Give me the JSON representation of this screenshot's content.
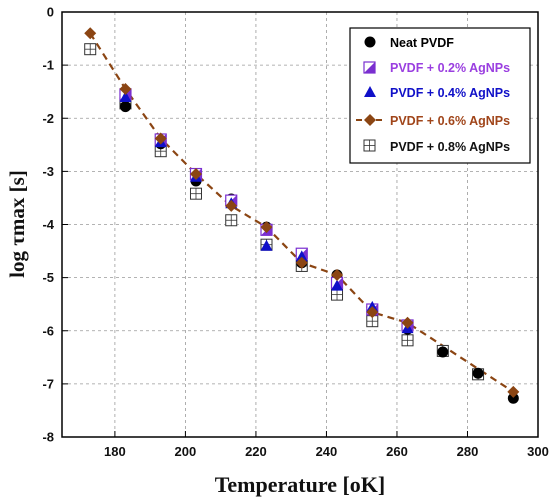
{
  "chart_data": {
    "type": "scatter",
    "xlabel": "Temperature [oK]",
    "ylabel": "log τmax [s]",
    "xlim": [
      165,
      300
    ],
    "ylim": [
      -8,
      0
    ],
    "x_ticks": [
      180,
      200,
      220,
      240,
      260,
      280,
      300
    ],
    "y_ticks": [
      0,
      -1,
      -2,
      -3,
      -4,
      -5,
      -6,
      -7,
      -8
    ],
    "grid": true,
    "legend_position": "top-right",
    "series": [
      {
        "name": "Neat PVDF",
        "marker": "circle",
        "color": "#000000",
        "x": [
          183,
          193,
          203,
          213,
          223,
          233,
          243,
          253,
          263,
          273,
          283,
          293
        ],
        "y": [
          -1.78,
          -2.48,
          -3.18,
          -3.52,
          -4.05,
          -4.72,
          -4.95,
          -5.6,
          -5.97,
          -6.4,
          -6.8,
          -7.27
        ]
      },
      {
        "name": "PVDF + 0.2% AgNPs",
        "marker": "half-square",
        "color": "#7a2fd0",
        "x": [
          183,
          193,
          203,
          213,
          223,
          233,
          243,
          253,
          263
        ],
        "y": [
          -1.55,
          -2.4,
          -3.05,
          -3.55,
          -4.1,
          -4.55,
          -5.1,
          -5.6,
          -5.9
        ]
      },
      {
        "name": "PVDF + 0.4% AgNPs",
        "marker": "triangle",
        "color": "#1010c8",
        "x": [
          183,
          193,
          203,
          213,
          223,
          233,
          243,
          253,
          263
        ],
        "y": [
          -1.6,
          -2.45,
          -3.1,
          -3.6,
          -4.4,
          -4.6,
          -5.15,
          -5.55,
          -5.95
        ]
      },
      {
        "name": "PVDF + 0.6% AgNPs",
        "marker": "diamond",
        "color": "#8b4513",
        "line": "dashed",
        "x": [
          173,
          183,
          193,
          203,
          213,
          223,
          233,
          243,
          253,
          263,
          293
        ],
        "y": [
          -0.4,
          -1.45,
          -2.38,
          -3.05,
          -3.65,
          -4.05,
          -4.72,
          -4.95,
          -5.65,
          -5.85,
          -7.15
        ]
      },
      {
        "name": "PVDF + 0.8% AgNPs",
        "marker": "grid-square",
        "color": "#333333",
        "x": [
          173,
          183,
          193,
          203,
          213,
          223,
          233,
          243,
          253,
          263,
          273,
          283
        ],
        "y": [
          -0.7,
          -1.72,
          -2.62,
          -3.42,
          -3.92,
          -4.38,
          -4.78,
          -5.32,
          -5.82,
          -6.18,
          -6.38,
          -6.82
        ]
      }
    ]
  },
  "legend": {
    "entries": [
      {
        "label": "Neat PVDF",
        "color": "#000000"
      },
      {
        "label": "PVDF + 0.2% AgNPs",
        "color": "#9a3ee0"
      },
      {
        "label": "PVDF + 0.4% AgNPs",
        "color": "#1010c8"
      },
      {
        "label": "PVDF + 0.6% AgNPs",
        "color": "#a0451a"
      },
      {
        "label": "PVDF + 0.8% AgNPs",
        "color": "#111111"
      }
    ]
  }
}
